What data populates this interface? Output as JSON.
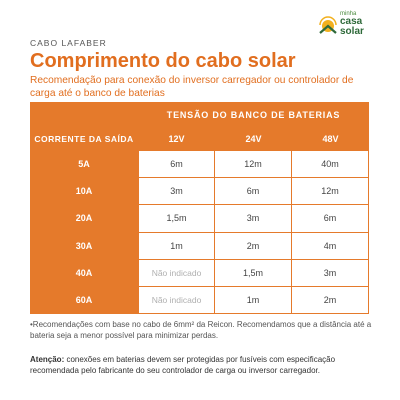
{
  "header": {
    "brand_tag": "CABO LAFABER",
    "title": "Comprimento do cabo solar",
    "subtitle": "Recomendação para conexão do inversor carregador ou controlador de carga até o banco de baterias"
  },
  "logo": {
    "line1": "minha",
    "line2": "casa",
    "line3": "solar",
    "icon": "sun-house-icon"
  },
  "table": {
    "group_header": "TENSÃO DO BANCO DE BATERIAS",
    "row_header": "CORRENTE DA SAÍDA",
    "columns": [
      "12V",
      "24V",
      "48V"
    ],
    "rows": [
      {
        "current": "5A",
        "values": [
          "6m",
          "12m",
          "40m"
        ]
      },
      {
        "current": "10A",
        "values": [
          "3m",
          "6m",
          "12m"
        ]
      },
      {
        "current": "20A",
        "values": [
          "1,5m",
          "3m",
          "6m"
        ]
      },
      {
        "current": "30A",
        "values": [
          "1m",
          "2m",
          "4m"
        ]
      },
      {
        "current": "40A",
        "values": [
          "Não indicado",
          "1,5m",
          "3m"
        ]
      },
      {
        "current": "60A",
        "values": [
          "Não indicado",
          "1m",
          "2m"
        ]
      }
    ]
  },
  "footer": {
    "note": "•Recomendações com base no cabo de 6mm² da Reicon. Recomendamos que a distância até a bateria seja a menor possível para minimizar perdas.",
    "warning_bold": "Atenção:",
    "warning_text": " conexões em baterias devem ser protegidas por fusíveis com especificação recomendada pelo fabricante do seu controlador de carga ou inversor carregador."
  },
  "colors": {
    "accent": "#e16e1f",
    "table_orange": "#e57a2b",
    "logo_green": "#2f6a3a",
    "logo_yellow": "#f2b01e"
  }
}
